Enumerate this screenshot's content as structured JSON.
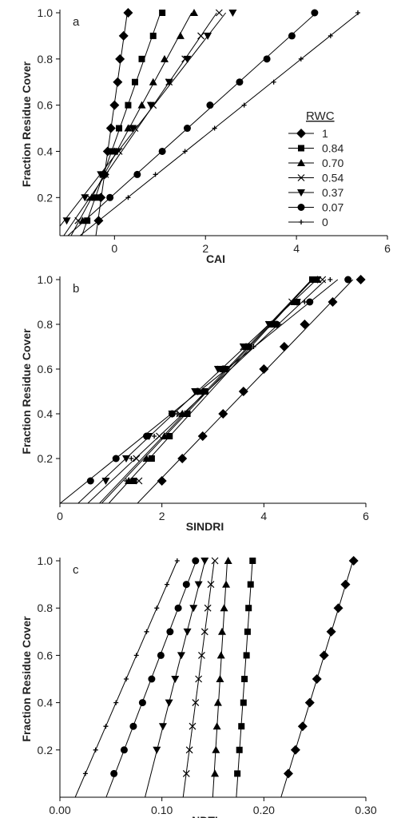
{
  "chart_data": [
    {
      "type": "scatter",
      "panel_label": "a",
      "xlabel": "CAI",
      "ylabel": "Fraction Residue Cover",
      "xlim": [
        -1.2,
        6
      ],
      "ylim": [
        0.035,
        1.0
      ],
      "x_ticks": [
        "0",
        "2",
        "4",
        "6"
      ],
      "x_tick_values": [
        0,
        2,
        4,
        6
      ],
      "y_ticks": [
        "0.2",
        "0.4",
        "0.6",
        "0.8",
        "1.0"
      ],
      "y_tick_values": [
        0.2,
        0.4,
        0.6,
        0.8,
        1.0
      ],
      "legend_title": "RWC",
      "legend_position": "right",
      "series": [
        {
          "name": "1",
          "marker": "diamond",
          "y": [
            0.1,
            0.2,
            0.3,
            0.4,
            0.5,
            0.6,
            0.7,
            0.8,
            0.9,
            1.0
          ],
          "x": [
            -0.35,
            -0.3,
            -0.22,
            -0.15,
            -0.08,
            0.0,
            0.07,
            0.12,
            0.2,
            0.3
          ]
        },
        {
          "name": "0.84",
          "marker": "square",
          "y": [
            0.1,
            0.2,
            0.3,
            0.4,
            0.5,
            0.6,
            0.7,
            0.8,
            0.9,
            1.0
          ],
          "x": [
            -0.6,
            -0.4,
            -0.25,
            -0.05,
            0.1,
            0.3,
            0.45,
            0.6,
            0.85,
            1.05
          ]
        },
        {
          "name": "0.70",
          "marker": "triangle",
          "y": [
            0.1,
            0.2,
            0.3,
            0.4,
            0.5,
            0.6,
            0.7,
            0.8,
            0.9,
            1.0
          ],
          "x": [
            -0.7,
            -0.5,
            -0.25,
            0.0,
            0.3,
            0.6,
            0.85,
            1.1,
            1.45,
            1.75
          ]
        },
        {
          "name": "0.54",
          "marker": "x",
          "y": [
            0.1,
            0.2,
            0.3,
            0.4,
            0.5,
            0.6,
            0.7,
            0.8,
            0.9,
            1.0
          ],
          "x": [
            -0.8,
            -0.55,
            -0.2,
            0.1,
            0.45,
            0.85,
            1.2,
            1.55,
            1.9,
            2.3
          ]
        },
        {
          "name": "0.37",
          "marker": "triangle-down",
          "y": [
            0.1,
            0.2,
            0.3,
            0.4,
            0.5,
            0.6,
            0.7,
            0.8,
            0.9,
            1.0
          ],
          "x": [
            -1.05,
            -0.65,
            -0.3,
            0.05,
            0.4,
            0.8,
            1.2,
            1.6,
            2.05,
            2.6
          ]
        },
        {
          "name": "0.07",
          "marker": "circle",
          "y": [
            0.2,
            0.3,
            0.4,
            0.5,
            0.6,
            0.7,
            0.8,
            0.9,
            1.0
          ],
          "x": [
            -0.1,
            0.5,
            1.05,
            1.6,
            2.1,
            2.75,
            3.35,
            3.9,
            4.4
          ]
        },
        {
          "name": "0",
          "marker": "plus",
          "y": [
            0.2,
            0.3,
            0.4,
            0.5,
            0.6,
            0.7,
            0.8,
            0.9,
            1.0
          ],
          "x": [
            0.3,
            0.9,
            1.55,
            2.2,
            2.85,
            3.5,
            4.1,
            4.75,
            5.35
          ]
        }
      ]
    },
    {
      "type": "scatter",
      "panel_label": "b",
      "xlabel": "SINDRI",
      "ylabel": "Fraction Residue Cover",
      "xlim": [
        0,
        6
      ],
      "ylim": [
        0.0,
        1.0
      ],
      "x_ticks": [
        "0",
        "2",
        "4",
        "6"
      ],
      "x_tick_values": [
        0,
        2,
        4,
        6
      ],
      "y_ticks": [
        "0.2",
        "0.4",
        "0.6",
        "0.8",
        "1.0"
      ],
      "y_tick_values": [
        0.2,
        0.4,
        0.6,
        0.8,
        1.0
      ],
      "series": [
        {
          "name": "1",
          "marker": "diamond",
          "y": [
            0.1,
            0.2,
            0.3,
            0.4,
            0.5,
            0.6,
            0.7,
            0.8,
            0.9,
            1.0
          ],
          "x": [
            2.0,
            2.4,
            2.8,
            3.2,
            3.6,
            4.0,
            4.4,
            4.8,
            5.35,
            5.9
          ]
        },
        {
          "name": "0.84",
          "marker": "square",
          "y": [
            0.1,
            0.2,
            0.3,
            0.4,
            0.5,
            0.6,
            0.7,
            0.8,
            0.9,
            1.0
          ],
          "x": [
            1.45,
            1.8,
            2.15,
            2.5,
            2.85,
            3.25,
            3.7,
            4.2,
            4.65,
            4.95
          ]
        },
        {
          "name": "0.70",
          "marker": "triangle",
          "y": [
            0.1,
            0.2,
            0.3,
            0.4,
            0.5,
            0.6,
            0.7,
            0.8,
            0.9,
            1.0
          ],
          "x": [
            1.35,
            1.7,
            2.05,
            2.4,
            2.8,
            3.2,
            3.65,
            4.15,
            4.6,
            5.05
          ]
        },
        {
          "name": "0.54",
          "marker": "x",
          "y": [
            0.1,
            0.2,
            0.3,
            0.4,
            0.5,
            0.6,
            0.7,
            0.8,
            0.9,
            1.0
          ],
          "x": [
            1.55,
            1.5,
            1.95,
            2.35,
            2.75,
            3.15,
            3.6,
            4.1,
            4.55,
            5.15
          ]
        },
        {
          "name": "0.37",
          "marker": "triangle-down",
          "y": [
            0.1,
            0.2,
            0.3,
            0.4,
            0.5,
            0.6,
            0.7,
            0.8,
            0.9,
            1.0
          ],
          "x": [
            0.9,
            1.3,
            1.75,
            2.2,
            2.65,
            3.1,
            3.6,
            4.1,
            4.65,
            5.05
          ]
        },
        {
          "name": "0.07",
          "marker": "circle",
          "y": [
            0.1,
            0.2,
            0.3,
            0.4,
            0.5,
            0.6,
            0.7,
            0.8,
            0.9,
            1.0
          ],
          "x": [
            0.6,
            1.1,
            1.7,
            2.2,
            2.7,
            3.2,
            3.7,
            4.25,
            4.9,
            5.65
          ]
        },
        {
          "name": "0",
          "marker": "plus",
          "y": [
            0.1,
            0.2,
            0.3,
            0.4,
            0.5,
            0.6,
            0.7,
            0.8,
            0.9,
            1.0
          ],
          "x": [
            1.3,
            1.4,
            1.85,
            2.3,
            2.8,
            3.3,
            3.8,
            4.3,
            4.8,
            5.3
          ]
        }
      ]
    },
    {
      "type": "scatter",
      "panel_label": "c",
      "xlabel": "NDTI",
      "ylabel": "Fraction Residue Cover",
      "xlim": [
        0.0,
        0.3
      ],
      "ylim": [
        0.0,
        1.0
      ],
      "x_ticks": [
        "0.00",
        "0.10",
        "0.20",
        "0.30"
      ],
      "x_tick_values": [
        0.0,
        0.1,
        0.2,
        0.3
      ],
      "y_ticks": [
        "0.2",
        "0.4",
        "0.6",
        "0.8",
        "1.0"
      ],
      "y_tick_values": [
        0.2,
        0.4,
        0.6,
        0.8,
        1.0
      ],
      "series": [
        {
          "name": "1",
          "marker": "diamond",
          "y": [
            0.1,
            0.2,
            0.3,
            0.4,
            0.5,
            0.6,
            0.7,
            0.8,
            0.9,
            1.0
          ],
          "x": [
            0.224,
            0.231,
            0.238,
            0.245,
            0.252,
            0.259,
            0.266,
            0.273,
            0.28,
            0.288
          ]
        },
        {
          "name": "0.84",
          "marker": "square",
          "y": [
            0.1,
            0.2,
            0.3,
            0.4,
            0.5,
            0.6,
            0.7,
            0.8,
            0.9,
            1.0
          ],
          "x": [
            0.174,
            0.176,
            0.178,
            0.18,
            0.181,
            0.183,
            0.184,
            0.185,
            0.187,
            0.189
          ]
        },
        {
          "name": "0.70",
          "marker": "triangle",
          "y": [
            0.1,
            0.2,
            0.3,
            0.4,
            0.5,
            0.6,
            0.7,
            0.8,
            0.9,
            1.0
          ],
          "x": [
            0.152,
            0.153,
            0.154,
            0.155,
            0.157,
            0.158,
            0.159,
            0.161,
            0.163,
            0.165
          ]
        },
        {
          "name": "0.54",
          "marker": "x",
          "y": [
            0.1,
            0.2,
            0.3,
            0.4,
            0.5,
            0.6,
            0.7,
            0.8,
            0.9,
            1.0
          ],
          "x": [
            0.124,
            0.127,
            0.13,
            0.133,
            0.136,
            0.139,
            0.142,
            0.145,
            0.148,
            0.152
          ]
        },
        {
          "name": "0.37",
          "marker": "triangle-down",
          "y": [
            0.2,
            0.3,
            0.4,
            0.5,
            0.6,
            0.7,
            0.8,
            0.9,
            1.0
          ],
          "x": [
            0.095,
            0.101,
            0.107,
            0.113,
            0.119,
            0.125,
            0.131,
            0.136,
            0.142
          ]
        },
        {
          "name": "0.07",
          "marker": "circle",
          "y": [
            0.1,
            0.2,
            0.3,
            0.4,
            0.5,
            0.6,
            0.7,
            0.8,
            0.9,
            1.0
          ],
          "x": [
            0.053,
            0.063,
            0.072,
            0.081,
            0.09,
            0.099,
            0.108,
            0.116,
            0.124,
            0.133
          ]
        },
        {
          "name": "0",
          "marker": "plus",
          "y": [
            0.1,
            0.2,
            0.3,
            0.4,
            0.5,
            0.6,
            0.7,
            0.8,
            0.9,
            1.0
          ],
          "x": [
            0.025,
            0.035,
            0.045,
            0.055,
            0.065,
            0.075,
            0.085,
            0.095,
            0.105,
            0.115
          ]
        }
      ]
    }
  ]
}
